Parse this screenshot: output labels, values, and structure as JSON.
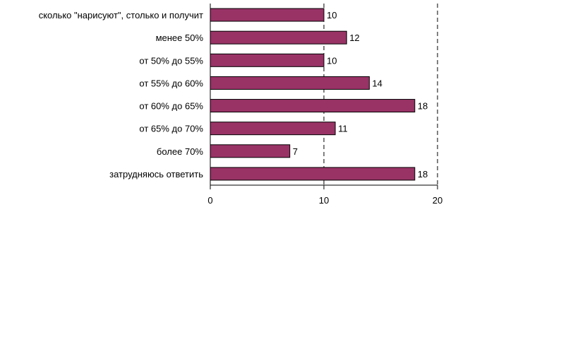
{
  "chart_data": {
    "type": "bar",
    "orientation": "horizontal",
    "categories": [
      "сколько \"нарисуют\", столько и получит",
      "менее 50%",
      "от 50% до 55%",
      "от 55% до 60%",
      "от 60% до 65%",
      "от 65% до 70%",
      "более 70%",
      "затрудняюсь ответить"
    ],
    "values": [
      10,
      12,
      10,
      14,
      18,
      11,
      7,
      18
    ],
    "xlim": [
      0,
      20
    ],
    "xticks": [
      0,
      10,
      20
    ],
    "grid": "vertical-dashed",
    "bar_color": "#993366",
    "title": "",
    "xlabel": "",
    "ylabel": ""
  }
}
